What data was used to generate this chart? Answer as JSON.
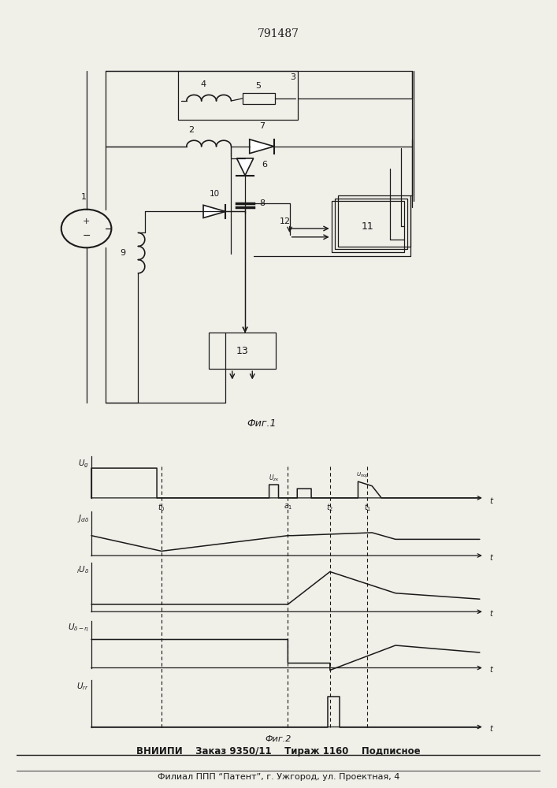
{
  "title": "791487",
  "fig1_label": "Фиг.1",
  "fig2_label": "Фиг.2",
  "footer_line1": "ВНИИПИ    Заказ 9350/11    Тираж 1160    Подписное",
  "footer_line2": "Филиал ППП “Патент”, г. Ужгород, ул. Проектная, 4",
  "bg_color": "#f0efe8",
  "line_color": "#1a1a1a"
}
